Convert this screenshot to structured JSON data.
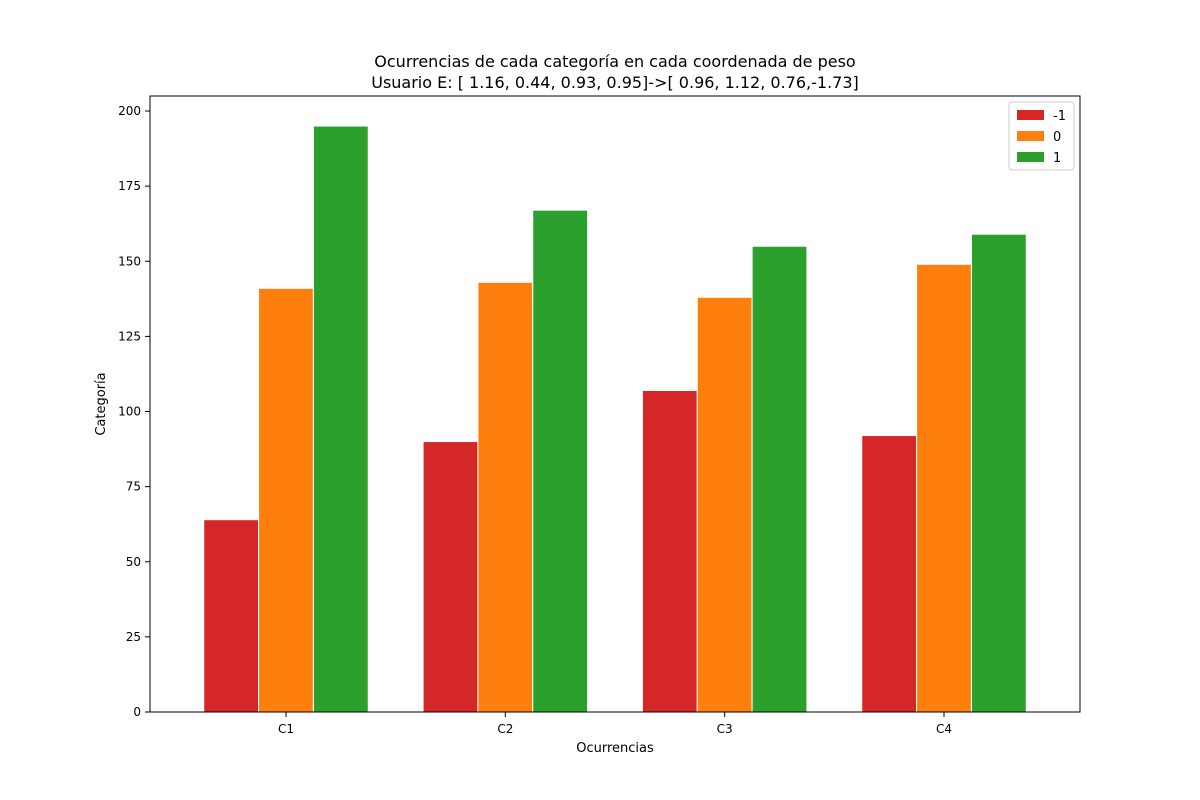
{
  "chart_data": {
    "type": "bar",
    "title": "Ocurrencias de cada categoría en cada coordenada de peso",
    "subtitle": "Usuario E: [ 1.16, 0.44, 0.93, 0.95]->[ 0.96, 1.12, 0.76,-1.73]",
    "xlabel": "Ocurrencias",
    "ylabel": "Categoría",
    "categories": [
      "C1",
      "C2",
      "C3",
      "C4"
    ],
    "ylim": [
      0,
      205
    ],
    "yticks": [
      0,
      25,
      50,
      75,
      100,
      125,
      150,
      175,
      200
    ],
    "grid": false,
    "legend_position": "top-right",
    "series": [
      {
        "name": "-1",
        "color": "#d62728",
        "values": [
          64,
          90,
          107,
          92
        ]
      },
      {
        "name": "0",
        "color": "#ff7f0e",
        "values": [
          141,
          143,
          138,
          149
        ]
      },
      {
        "name": "1",
        "color": "#2ca02c",
        "values": [
          195,
          167,
          155,
          159
        ]
      }
    ]
  }
}
